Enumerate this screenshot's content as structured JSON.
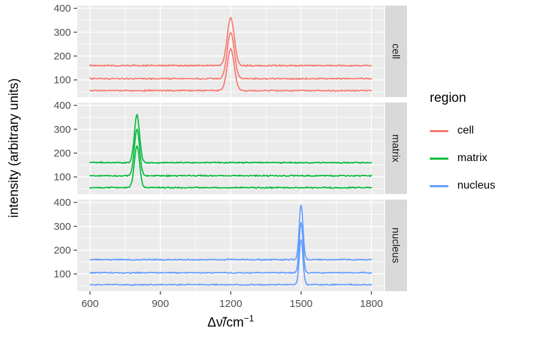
{
  "chart_data": {
    "type": "line",
    "title": "",
    "facet_variable": "region",
    "xlabel": {
      "text": "Δν̃/cm",
      "superscript": "−1"
    },
    "ylabel": "intensity (arbitrary units)",
    "x_ticks": [
      600,
      900,
      1200,
      1500,
      1800
    ],
    "y_ticks": [
      100,
      200,
      300,
      400
    ],
    "x_minor_ticks": [
      750,
      1050,
      1350,
      1650
    ],
    "y_minor_ticks": [
      50,
      150,
      250,
      350
    ],
    "xlim": [
      545,
      1855
    ],
    "ylim": [
      28,
      412
    ],
    "x_range_data": [
      600,
      1800
    ],
    "grid": true,
    "legend_position": "right",
    "panel_bg": "#EBEBEB",
    "grid_color": "#FFFFFF",
    "strip_bg": "#D9D9D9",
    "strip_text_color": "#1A1A1A",
    "axis_text_color": "#4D4D4D",
    "tick_mark_color": "#333333",
    "noise_amplitude": 3.5,
    "points_per_trace": 400,
    "facets": [
      {
        "label": "cell",
        "color": "#F8766D",
        "peak_center": 1200,
        "peak_sigma": 15,
        "traces": [
          {
            "baseline": 55,
            "peak_height": 175
          },
          {
            "baseline": 105,
            "peak_height": 195
          },
          {
            "baseline": 160,
            "peak_height": 200
          }
        ]
      },
      {
        "label": "matrix",
        "color": "#00BA38",
        "peak_center": 800,
        "peak_sigma": 11,
        "traces": [
          {
            "baseline": 55,
            "peak_height": 175
          },
          {
            "baseline": 105,
            "peak_height": 195
          },
          {
            "baseline": 160,
            "peak_height": 200
          }
        ]
      },
      {
        "label": "nucleus",
        "color": "#619CFF",
        "peak_center": 1500,
        "peak_sigma": 8,
        "traces": [
          {
            "baseline": 55,
            "peak_height": 190
          },
          {
            "baseline": 105,
            "peak_height": 210
          },
          {
            "baseline": 160,
            "peak_height": 230
          }
        ]
      }
    ],
    "legend": {
      "title": "region",
      "entries": [
        {
          "label": "cell",
          "color": "#F8766D"
        },
        {
          "label": "matrix",
          "color": "#00BA38"
        },
        {
          "label": "nucleus",
          "color": "#619CFF"
        }
      ]
    }
  }
}
